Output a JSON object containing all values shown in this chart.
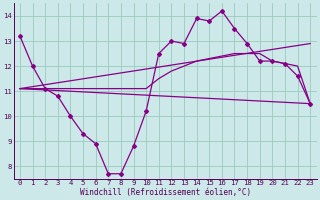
{
  "bg_color": "#cce8e8",
  "line_color": "#880088",
  "grid_color": "#99ccbb",
  "xlabel": "Windchill (Refroidissement éolien,°C)",
  "xlabel_color": "#550055",
  "tick_color": "#550055",
  "ylim": [
    7.5,
    14.5
  ],
  "xlim": [
    -0.5,
    23.5
  ],
  "yticks": [
    8,
    9,
    10,
    11,
    12,
    13,
    14
  ],
  "xticks": [
    0,
    1,
    2,
    3,
    4,
    5,
    6,
    7,
    8,
    9,
    10,
    11,
    12,
    13,
    14,
    15,
    16,
    17,
    18,
    19,
    20,
    21,
    22,
    23
  ],
  "line1_x": [
    0,
    1,
    2,
    3,
    4,
    5,
    6,
    7,
    8,
    9,
    10,
    11,
    12,
    13,
    14,
    15,
    16,
    17,
    18,
    19,
    20,
    21,
    22,
    23
  ],
  "line1_y": [
    13.2,
    12.0,
    11.1,
    10.8,
    10.0,
    9.3,
    8.9,
    7.7,
    7.7,
    8.8,
    10.2,
    12.5,
    13.0,
    12.9,
    13.9,
    13.8,
    14.2,
    13.5,
    12.9,
    12.2,
    12.2,
    12.1,
    11.6,
    10.5
  ],
  "line2_x": [
    0,
    23
  ],
  "line2_y": [
    11.1,
    12.9
  ],
  "line3_x": [
    0,
    23
  ],
  "line3_y": [
    11.1,
    10.5
  ],
  "line4_x": [
    0,
    10,
    11,
    12,
    13,
    14,
    15,
    16,
    17,
    18,
    19,
    20,
    21,
    22,
    23
  ],
  "line4_y": [
    11.1,
    11.1,
    11.5,
    11.8,
    12.0,
    12.2,
    12.3,
    12.4,
    12.5,
    12.5,
    12.5,
    12.2,
    12.1,
    12.0,
    10.5
  ]
}
